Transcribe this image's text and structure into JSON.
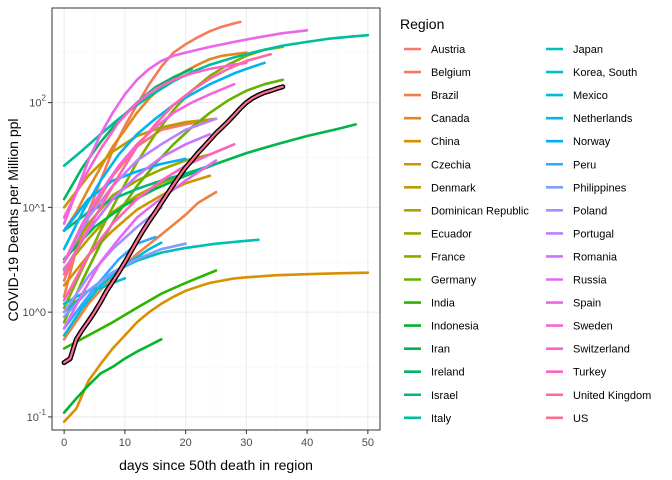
{
  "chart_data": {
    "type": "line",
    "xlabel": "days since 50th death in region",
    "ylabel": "COVID-19 Deaths per Million ppl",
    "xlim": [
      -2,
      52
    ],
    "ylim": [
      0.075,
      800
    ],
    "y_scale": "log10",
    "x_ticks": [
      0,
      10,
      20,
      30,
      40,
      50
    ],
    "y_ticks": [
      {
        "value": 0.1,
        "base": "10",
        "exp": "-1"
      },
      {
        "value": 1,
        "label": "10^0"
      },
      {
        "value": 10,
        "label": "10^1"
      },
      {
        "value": 100,
        "base": "10",
        "exp": "2"
      }
    ],
    "grid": true,
    "legend": {
      "title": "Region",
      "placement": "right",
      "columns": 2
    },
    "highlighted_series": "US",
    "series": [
      {
        "name": "Austria",
        "color": "#F8766D",
        "x": [
          0,
          4,
          8,
          12,
          16,
          20,
          24
        ],
        "y": [
          2.0,
          8,
          20,
          38,
          55,
          62,
          68
        ]
      },
      {
        "name": "Belgium",
        "color": "#F37B59",
        "x": [
          0,
          2,
          4,
          6,
          8,
          10,
          12,
          14,
          16,
          18,
          20,
          22,
          24,
          26,
          28,
          29
        ],
        "y": [
          1.4,
          4,
          9,
          18,
          35,
          60,
          95,
          150,
          220,
          300,
          360,
          420,
          480,
          530,
          570,
          590
        ]
      },
      {
        "name": "Brazil",
        "color": "#ED8141",
        "x": [
          0,
          4,
          8,
          12,
          16,
          20,
          22,
          25
        ],
        "y": [
          0.55,
          1.2,
          2.2,
          3.6,
          5.5,
          8.5,
          11,
          14
        ]
      },
      {
        "name": "Canada",
        "color": "#E7861B",
        "x": [
          0,
          2,
          4,
          6,
          8,
          10,
          12,
          14,
          16,
          18,
          20,
          22,
          24,
          26,
          28,
          30
        ],
        "y": [
          6,
          9,
          15,
          24,
          38,
          55,
          80,
          110,
          140,
          170,
          200,
          230,
          260,
          280,
          290,
          300
        ]
      },
      {
        "name": "China",
        "color": "#D89000",
        "x": [
          0,
          2,
          4,
          6,
          8,
          10,
          12,
          14,
          16,
          18,
          20,
          22,
          24,
          26,
          28,
          30,
          35,
          40,
          45,
          50
        ],
        "y": [
          0.09,
          0.12,
          0.22,
          0.32,
          0.45,
          0.6,
          0.8,
          1.0,
          1.2,
          1.4,
          1.6,
          1.75,
          1.9,
          2.0,
          2.1,
          2.15,
          2.25,
          2.3,
          2.35,
          2.38
        ]
      },
      {
        "name": "Czechia",
        "color": "#CF9400",
        "x": [
          0,
          4,
          8,
          12,
          16,
          20,
          24
        ],
        "y": [
          1.8,
          3.5,
          6,
          9.5,
          13,
          17,
          20
        ]
      },
      {
        "name": "Denmark",
        "color": "#C09B00",
        "x": [
          0,
          4,
          8,
          12,
          16,
          20,
          25
        ],
        "y": [
          10,
          20,
          34,
          48,
          58,
          65,
          70
        ]
      },
      {
        "name": "Dominican Republic",
        "color": "#AFA100",
        "x": [
          0,
          4,
          8,
          12,
          16,
          20
        ],
        "y": [
          2.6,
          5,
          9,
          13,
          17,
          21
        ]
      },
      {
        "name": "Ecuador",
        "color": "#9CA700",
        "x": [
          0,
          4,
          8,
          12,
          16,
          20,
          24
        ],
        "y": [
          3,
          7,
          13,
          18,
          23,
          28,
          32
        ]
      },
      {
        "name": "France",
        "color": "#85AD00",
        "x": [
          0,
          3,
          6,
          9,
          12,
          15,
          18,
          21,
          24,
          27,
          30,
          33,
          36
        ],
        "y": [
          1.1,
          2.6,
          6,
          13,
          27,
          50,
          85,
          130,
          180,
          230,
          280,
          320,
          340
        ]
      },
      {
        "name": "Germany",
        "color": "#68B100",
        "x": [
          0,
          3,
          6,
          9,
          12,
          15,
          18,
          21,
          24,
          27,
          30,
          33,
          36
        ],
        "y": [
          0.8,
          2,
          4.5,
          9,
          16,
          26,
          40,
          58,
          80,
          105,
          130,
          150,
          165
        ]
      },
      {
        "name": "India",
        "color": "#2EB300",
        "x": [
          0,
          4,
          8,
          12,
          16,
          20,
          25
        ],
        "y": [
          0.45,
          0.6,
          0.8,
          1.1,
          1.5,
          1.9,
          2.5
        ]
      },
      {
        "name": "Indonesia",
        "color": "#00B52D",
        "x": [
          0,
          2,
          4,
          6,
          8,
          10,
          12,
          14,
          16
        ],
        "y": [
          0.11,
          0.15,
          0.2,
          0.26,
          0.3,
          0.36,
          0.42,
          0.48,
          0.55
        ]
      },
      {
        "name": "Iran",
        "color": "#00B64A",
        "x": [
          0,
          5,
          10,
          15,
          20,
          25,
          30,
          35,
          40,
          45,
          48
        ],
        "y": [
          3.2,
          6.5,
          10.5,
          15,
          20,
          26,
          33,
          40,
          48,
          56,
          62
        ]
      },
      {
        "name": "Ireland",
        "color": "#00B760",
        "x": [
          0,
          3,
          6,
          9,
          12,
          15,
          18,
          21
        ],
        "y": [
          12,
          24,
          42,
          68,
          100,
          140,
          175,
          210
        ]
      },
      {
        "name": "Israel",
        "color": "#00B975",
        "x": [
          0,
          4,
          8,
          12,
          16,
          20,
          25
        ],
        "y": [
          6,
          9,
          12,
          15,
          18,
          21,
          26
        ]
      },
      {
        "name": "Italy",
        "color": "#00BD9C",
        "x": [
          0,
          3,
          6,
          9,
          12,
          15,
          18,
          21,
          24,
          28,
          32,
          36,
          40,
          44,
          48,
          50
        ],
        "y": [
          25,
          35,
          50,
          70,
          95,
          125,
          160,
          195,
          230,
          270,
          310,
          350,
          380,
          410,
          430,
          440
        ]
      },
      {
        "name": "Japan",
        "color": "#00BFB4",
        "x": [
          0,
          4,
          8,
          12,
          16,
          20,
          25,
          30,
          32
        ],
        "y": [
          1.0,
          1.6,
          2.4,
          3.1,
          3.7,
          4.1,
          4.5,
          4.8,
          4.9
        ]
      },
      {
        "name": "Korea, South",
        "color": "#00BECA",
        "x": [
          0,
          2,
          4,
          6,
          8,
          10
        ],
        "y": [
          1.2,
          1.4,
          1.6,
          1.7,
          1.9,
          2.1
        ]
      },
      {
        "name": "Mexico",
        "color": "#00BCDB",
        "x": [
          0,
          3,
          6,
          10,
          14,
          16
        ],
        "y": [
          0.6,
          1.1,
          1.8,
          2.8,
          4,
          4.6
        ]
      },
      {
        "name": "Netherlands",
        "color": "#00B6EB",
        "x": [
          0,
          3,
          6,
          9,
          12,
          15,
          18,
          21,
          24,
          28,
          30,
          33
        ],
        "y": [
          4,
          9,
          18,
          32,
          50,
          70,
          95,
          120,
          150,
          190,
          210,
          240
        ]
      },
      {
        "name": "Norway",
        "color": "#00B0F6",
        "x": [
          0,
          4,
          8,
          12,
          16,
          20
        ],
        "y": [
          6,
          12,
          18,
          22,
          26,
          29
        ]
      },
      {
        "name": "Peru",
        "color": "#31A7FF",
        "x": [
          0,
          3,
          6,
          9,
          12,
          15
        ],
        "y": [
          0.7,
          1.2,
          2,
          3.2,
          4.5,
          5.2
        ]
      },
      {
        "name": "Philippines",
        "color": "#839BFF",
        "x": [
          0,
          4,
          8,
          12,
          16,
          20
        ],
        "y": [
          0.9,
          1.6,
          2.4,
          3.2,
          4,
          4.5
        ]
      },
      {
        "name": "Poland",
        "color": "#A38FFF",
        "x": [
          0,
          4,
          8,
          12,
          16
        ],
        "y": [
          1.0,
          2.2,
          4,
          6.5,
          10
        ]
      },
      {
        "name": "Portugal",
        "color": "#B783FF",
        "x": [
          0,
          4,
          8,
          12,
          16,
          20,
          25
        ],
        "y": [
          3,
          8,
          16,
          28,
          40,
          55,
          70
        ]
      },
      {
        "name": "Romania",
        "color": "#CC72FF",
        "x": [
          0,
          4,
          8,
          12,
          16,
          20,
          24
        ],
        "y": [
          2.5,
          6,
          12,
          20,
          30,
          40,
          50
        ]
      },
      {
        "name": "Russia",
        "color": "#E568F5",
        "x": [
          0,
          3,
          6,
          9,
          12,
          15,
          20,
          25
        ],
        "y": [
          0.7,
          1.5,
          3,
          5,
          8,
          11,
          18,
          28
        ]
      },
      {
        "name": "Spain",
        "color": "#ED66E9",
        "x": [
          0,
          2,
          4,
          6,
          8,
          10,
          12,
          14,
          16,
          18,
          20,
          24,
          28,
          32,
          36,
          40
        ],
        "y": [
          7,
          14,
          28,
          50,
          80,
          120,
          165,
          210,
          250,
          280,
          300,
          340,
          380,
          420,
          460,
          490
        ]
      },
      {
        "name": "Sweden",
        "color": "#F565DC",
        "x": [
          0,
          3,
          6,
          9,
          12,
          15,
          18,
          21,
          24,
          28
        ],
        "y": [
          3,
          7,
          14,
          25,
          40,
          58,
          80,
          100,
          120,
          150
        ]
      },
      {
        "name": "Switzerland",
        "color": "#FC61CF",
        "x": [
          0,
          3,
          6,
          9,
          12,
          15,
          18,
          21,
          24,
          28,
          30
        ],
        "y": [
          8,
          18,
          36,
          65,
          100,
          135,
          165,
          190,
          210,
          230,
          240
        ]
      },
      {
        "name": "Turkey",
        "color": "#FF62BE",
        "x": [
          0,
          4,
          8,
          12,
          16,
          20,
          24,
          28
        ],
        "y": [
          1.3,
          3.5,
          7,
          12,
          18,
          25,
          32,
          40
        ]
      },
      {
        "name": "United Kingdom",
        "color": "#FF66A8",
        "x": [
          0,
          3,
          6,
          9,
          12,
          15,
          18,
          21,
          24,
          27,
          30,
          34
        ],
        "y": [
          2.3,
          5,
          10,
          20,
          38,
          62,
          95,
          130,
          170,
          210,
          250,
          290
        ]
      },
      {
        "name": "US",
        "color": "#FF6C91",
        "x": [
          0,
          1,
          2,
          3,
          4,
          5,
          6,
          7,
          8,
          9,
          10,
          11,
          12,
          13,
          14,
          15,
          16,
          17,
          18,
          19,
          20,
          21,
          22,
          23,
          24,
          25,
          26,
          27,
          28,
          29,
          30,
          31,
          32,
          33,
          34,
          35,
          36
        ],
        "y": [
          0.33,
          0.36,
          0.55,
          0.68,
          0.82,
          1.0,
          1.25,
          1.6,
          1.95,
          2.4,
          3.0,
          3.8,
          4.8,
          6.0,
          7.4,
          9.0,
          11,
          13.5,
          16.5,
          20,
          24,
          28,
          33,
          38,
          44,
          51,
          58,
          66,
          76,
          88,
          100,
          110,
          118,
          125,
          130,
          136,
          142
        ]
      }
    ]
  }
}
